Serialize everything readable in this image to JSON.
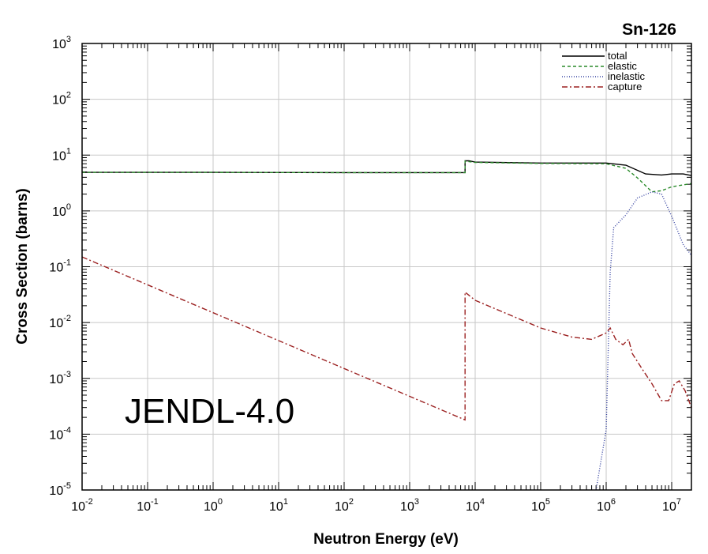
{
  "chart_data": {
    "type": "line",
    "title": "Sn-126",
    "xlabel": "Neutron Energy (eV)",
    "ylabel": "Cross Section (barns)",
    "annotation": "JENDL-4.0",
    "xscale": "log",
    "yscale": "log",
    "xlim": [
      0.01,
      20000000
    ],
    "ylim": [
      1e-05,
      1000
    ],
    "grid": true,
    "legend_position": "top-right",
    "x_ticks": [
      {
        "base": "10",
        "exp": "-2",
        "value": 0.01
      },
      {
        "base": "10",
        "exp": "-1",
        "value": 0.1
      },
      {
        "base": "10",
        "exp": "0",
        "value": 1
      },
      {
        "base": "10",
        "exp": "1",
        "value": 10
      },
      {
        "base": "10",
        "exp": "2",
        "value": 100
      },
      {
        "base": "10",
        "exp": "3",
        "value": 1000
      },
      {
        "base": "10",
        "exp": "4",
        "value": 10000
      },
      {
        "base": "10",
        "exp": "5",
        "value": 100000
      },
      {
        "base": "10",
        "exp": "6",
        "value": 1000000
      },
      {
        "base": "10",
        "exp": "7",
        "value": 10000000
      }
    ],
    "y_ticks": [
      {
        "base": "10",
        "exp": "3",
        "value": 1000
      },
      {
        "base": "10",
        "exp": "2",
        "value": 100
      },
      {
        "base": "10",
        "exp": "1",
        "value": 10
      },
      {
        "base": "10",
        "exp": "0",
        "value": 1
      },
      {
        "base": "10",
        "exp": "-1",
        "value": 0.1
      },
      {
        "base": "10",
        "exp": "-2",
        "value": 0.01
      },
      {
        "base": "10",
        "exp": "-3",
        "value": 0.001
      },
      {
        "base": "10",
        "exp": "-4",
        "value": 0.0001
      },
      {
        "base": "10",
        "exp": "-5",
        "value": 1e-05
      }
    ],
    "series": [
      {
        "name": "total",
        "color": "#000000",
        "dash": "",
        "points": [
          [
            0.01,
            4.9
          ],
          [
            1,
            4.9
          ],
          [
            100,
            4.85
          ],
          [
            7000,
            4.85
          ],
          [
            7000,
            7.9
          ],
          [
            8000,
            7.9
          ],
          [
            10000,
            7.5
          ],
          [
            100000,
            7.2
          ],
          [
            1000000,
            7.2
          ],
          [
            2000000,
            6.6
          ],
          [
            4000000,
            4.6
          ],
          [
            7000000,
            4.4
          ],
          [
            10000000,
            4.6
          ],
          [
            15000000,
            4.6
          ],
          [
            20000000,
            4.3
          ]
        ]
      },
      {
        "name": "elastic",
        "color": "#2a8a2a",
        "dash": "4,3",
        "points": [
          [
            0.01,
            4.9
          ],
          [
            1,
            4.9
          ],
          [
            100,
            4.85
          ],
          [
            7000,
            4.85
          ],
          [
            7000,
            7.8
          ],
          [
            10000,
            7.4
          ],
          [
            100000,
            7.1
          ],
          [
            1000000,
            7.0
          ],
          [
            2000000,
            5.8
          ],
          [
            3000000,
            3.9
          ],
          [
            5000000,
            2.2
          ],
          [
            7000000,
            2.3
          ],
          [
            10000000,
            2.7
          ],
          [
            20000000,
            3.1
          ]
        ]
      },
      {
        "name": "inelastic",
        "color": "#3340a0",
        "dash": "1,2",
        "points": [
          [
            700000,
            1e-05
          ],
          [
            1000000,
            0.00012
          ],
          [
            1150000,
            0.08
          ],
          [
            1300000,
            0.5
          ],
          [
            2000000,
            0.85
          ],
          [
            3000000,
            1.7
          ],
          [
            5000000,
            2.2
          ],
          [
            7000000,
            2.0
          ],
          [
            10000000,
            0.8
          ],
          [
            15000000,
            0.25
          ],
          [
            20000000,
            0.16
          ]
        ]
      },
      {
        "name": "capture",
        "color": "#9b2020",
        "dash": "7,3,2,3",
        "points": [
          [
            0.01,
            0.15
          ],
          [
            1,
            0.015
          ],
          [
            100,
            0.0015
          ],
          [
            7000,
            0.00018
          ],
          [
            7000,
            0.035
          ],
          [
            10000,
            0.025
          ],
          [
            100000,
            0.008
          ],
          [
            300000,
            0.0055
          ],
          [
            600000,
            0.005
          ],
          [
            1000000,
            0.0065
          ],
          [
            1150000,
            0.008
          ],
          [
            1400000,
            0.005
          ],
          [
            1800000,
            0.004
          ],
          [
            2200000,
            0.005
          ],
          [
            2500000,
            0.0028
          ],
          [
            3500000,
            0.0015
          ],
          [
            5000000,
            0.0008
          ],
          [
            7000000,
            0.0004
          ],
          [
            9000000,
            0.0004
          ],
          [
            11000000,
            0.0008
          ],
          [
            13000000,
            0.0009
          ],
          [
            16000000,
            0.0006
          ],
          [
            20000000,
            0.0003
          ]
        ]
      }
    ]
  }
}
